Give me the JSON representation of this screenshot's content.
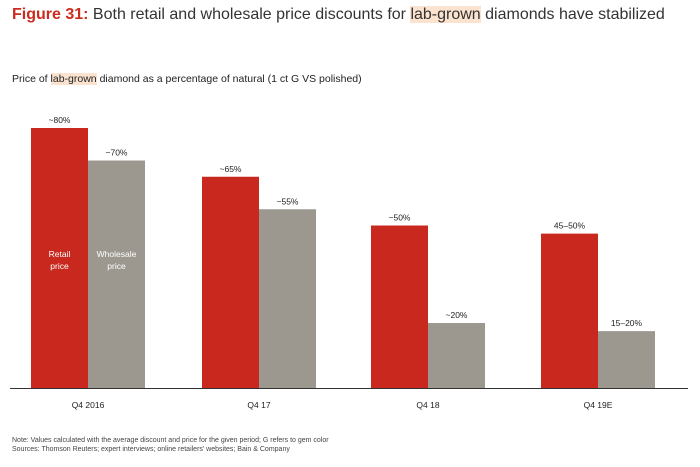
{
  "figure": {
    "number": "Figure 31:",
    "title_before": "Both retail and wholesale price discounts for",
    "title_highlight": "lab-grown",
    "title_after": "diamonds have stabilized"
  },
  "subtitle": {
    "before": "Price of",
    "highlight": "lab-grown",
    "after": "diamond as a percentage of natural (1 ct G VS polished)"
  },
  "notes": {
    "note": "Note: Values calculated with the average discount and price for the given period; G refers to gem color",
    "sources": "Sources: Thomson Reuters; expert interviews; online retailers' websites; Bain & Company"
  },
  "colors": {
    "retail": "#c8281e",
    "wholesale": "#9c9890",
    "highlight": "#fbe3cf",
    "accent": "#cc2b1d"
  },
  "chart_data": {
    "type": "bar",
    "title": "Price of lab-grown diamond as a percentage of natural (1 ct G VS polished)",
    "categories": [
      "Q4 2016",
      "Q4 17",
      "Q4 18",
      "Q4 19E"
    ],
    "series": [
      {
        "name": "Retail price",
        "name_lines": [
          "Retail",
          "price"
        ],
        "values": [
          80,
          65,
          50,
          47.5
        ],
        "labels": [
          "~80%",
          "~65%",
          "~50%",
          "45–50%"
        ]
      },
      {
        "name": "Wholesale price",
        "name_lines": [
          "Wholesale",
          "price"
        ],
        "values": [
          70,
          55,
          20,
          17.5
        ],
        "labels": [
          "~70%",
          "~55%",
          "~20%",
          "15–20%"
        ]
      }
    ],
    "ylim": [
      0,
      100
    ],
    "grid": false,
    "legend": "inside first bars"
  }
}
